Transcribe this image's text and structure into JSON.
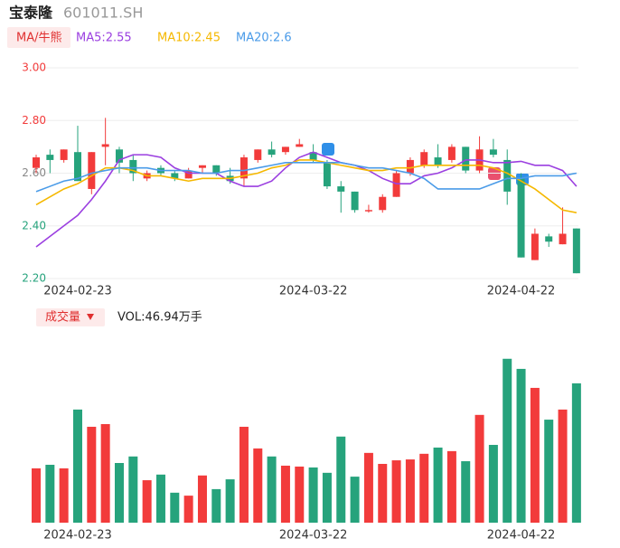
{
  "chart_data": [
    {
      "type": "candlestick",
      "title": "宝泰隆",
      "subtitle": "601011.SH",
      "legend_title": "MA/牛熊",
      "categories": [
        null,
        null,
        null,
        "2024-02-23",
        null,
        null,
        null,
        null,
        null,
        null,
        null,
        null,
        null,
        null,
        null,
        null,
        null,
        null,
        null,
        null,
        "2024-03-22",
        null,
        null,
        null,
        null,
        null,
        null,
        null,
        null,
        null,
        null,
        null,
        null,
        null,
        null,
        "2024-04-22",
        null,
        null,
        null,
        null
      ],
      "open": [
        2.62,
        2.67,
        2.65,
        2.68,
        2.54,
        2.7,
        2.69,
        2.65,
        2.58,
        2.62,
        2.6,
        2.58,
        2.62,
        2.63,
        2.59,
        2.58,
        2.65,
        2.69,
        2.68,
        2.7,
        2.68,
        2.64,
        2.55,
        2.53,
        2.455,
        2.46,
        2.51,
        2.6,
        2.63,
        2.66,
        2.65,
        2.7,
        2.61,
        2.69,
        2.65,
        2.58,
        2.27,
        2.36,
        2.33,
        2.39
      ],
      "high": [
        2.67,
        2.69,
        2.69,
        2.78,
        2.68,
        2.81,
        2.7,
        2.67,
        2.61,
        2.63,
        2.61,
        2.62,
        2.63,
        2.63,
        2.62,
        2.67,
        2.69,
        2.72,
        2.7,
        2.73,
        2.71,
        2.65,
        2.57,
        2.53,
        2.48,
        2.52,
        2.61,
        2.66,
        2.69,
        2.71,
        2.71,
        2.7,
        2.74,
        2.73,
        2.69,
        2.6,
        2.39,
        2.37,
        2.47,
        2.39
      ],
      "low": [
        2.6,
        2.6,
        2.64,
        2.57,
        2.52,
        2.63,
        2.6,
        2.57,
        2.57,
        2.59,
        2.57,
        2.58,
        2.6,
        2.59,
        2.56,
        2.55,
        2.64,
        2.66,
        2.67,
        2.7,
        2.64,
        2.54,
        2.45,
        2.45,
        2.45,
        2.45,
        2.51,
        2.59,
        2.62,
        2.62,
        2.64,
        2.6,
        2.6,
        2.66,
        2.48,
        2.28,
        2.27,
        2.32,
        2.33,
        2.22
      ],
      "close": [
        2.66,
        2.65,
        2.69,
        2.57,
        2.68,
        2.71,
        2.64,
        2.6,
        2.6,
        2.6,
        2.58,
        2.61,
        2.63,
        2.6,
        2.57,
        2.66,
        2.69,
        2.67,
        2.7,
        2.71,
        2.65,
        2.55,
        2.53,
        2.46,
        2.46,
        2.51,
        2.6,
        2.65,
        2.68,
        2.63,
        2.7,
        2.61,
        2.69,
        2.67,
        2.53,
        2.28,
        2.37,
        2.34,
        2.37,
        2.22
      ],
      "up_color": "#f23b3b",
      "down_color": "#26a37c",
      "series": [
        {
          "name": "MA5:2.55",
          "color": "#9b3fe0",
          "values": [
            2.32,
            2.36,
            2.4,
            2.44,
            2.5,
            2.57,
            2.65,
            2.67,
            2.67,
            2.66,
            2.62,
            2.6,
            2.6,
            2.6,
            2.57,
            2.55,
            2.55,
            2.57,
            2.62,
            2.66,
            2.68,
            2.66,
            2.64,
            2.63,
            2.61,
            2.58,
            2.56,
            2.56,
            2.59,
            2.6,
            2.62,
            2.65,
            2.65,
            2.64,
            2.64,
            2.645,
            2.63,
            2.63,
            2.61,
            2.55
          ]
        },
        {
          "name": "MA10:2.45",
          "color": "#f5b800",
          "values": [
            2.48,
            2.51,
            2.54,
            2.56,
            2.59,
            2.62,
            2.62,
            2.61,
            2.59,
            2.59,
            2.58,
            2.57,
            2.58,
            2.58,
            2.58,
            2.59,
            2.6,
            2.62,
            2.63,
            2.65,
            2.65,
            2.64,
            2.63,
            2.62,
            2.61,
            2.61,
            2.62,
            2.62,
            2.63,
            2.63,
            2.63,
            2.63,
            2.63,
            2.62,
            2.6,
            2.57,
            2.54,
            2.5,
            2.46,
            2.45
          ]
        },
        {
          "name": "MA20:2.6",
          "color": "#4a9be8",
          "values": [
            2.53,
            2.55,
            2.57,
            2.58,
            2.6,
            2.61,
            2.62,
            2.62,
            2.62,
            2.61,
            2.61,
            2.61,
            2.6,
            2.6,
            2.61,
            2.61,
            2.62,
            2.63,
            2.64,
            2.64,
            2.64,
            2.64,
            2.64,
            2.63,
            2.62,
            2.62,
            2.61,
            2.6,
            2.58,
            2.54,
            2.54,
            2.54,
            2.54,
            2.56,
            2.58,
            2.58,
            2.59,
            2.59,
            2.59,
            2.6
          ]
        }
      ],
      "ylim": [
        2.2,
        3.0
      ],
      "yticks": [
        {
          "value": 3.0,
          "label": "3.00"
        },
        {
          "value": 2.8,
          "label": "2.80"
        },
        {
          "value": 2.6,
          "label": "2.60"
        },
        {
          "value": 2.4,
          "label": "2.40"
        },
        {
          "value": 2.2,
          "label": "2.20"
        }
      ],
      "ytick_colors": [
        "#f23b3b",
        "#f23b3b",
        "#888888",
        "#26a37c",
        "#26a37c"
      ],
      "grid": true
    },
    {
      "type": "bar",
      "title": "成交量",
      "subtitle": "VOL:46.94万手",
      "categories": [
        null,
        null,
        null,
        "2024-02-23",
        null,
        null,
        null,
        null,
        null,
        null,
        null,
        null,
        null,
        null,
        null,
        null,
        null,
        null,
        null,
        null,
        "2024-03-22",
        null,
        null,
        null,
        null,
        null,
        null,
        null,
        null,
        null,
        null,
        null,
        null,
        null,
        null,
        "2024-04-22",
        null,
        null,
        null,
        null
      ],
      "values": [
        18.3,
        19.5,
        18.3,
        38.1,
        32.3,
        33.2,
        20.1,
        22.3,
        14.3,
        16.2,
        10.1,
        9.1,
        15.9,
        11.3,
        14.6,
        32.3,
        25.0,
        22.3,
        19.2,
        18.9,
        18.6,
        16.8,
        29.0,
        15.5,
        23.5,
        19.8,
        21.0,
        21.3,
        23.2,
        25.3,
        24.1,
        20.7,
        36.3,
        26.2,
        55.2,
        51.8,
        45.4,
        34.7,
        38.1,
        46.94
      ],
      "ylim": [
        0,
        60
      ]
    }
  ]
}
